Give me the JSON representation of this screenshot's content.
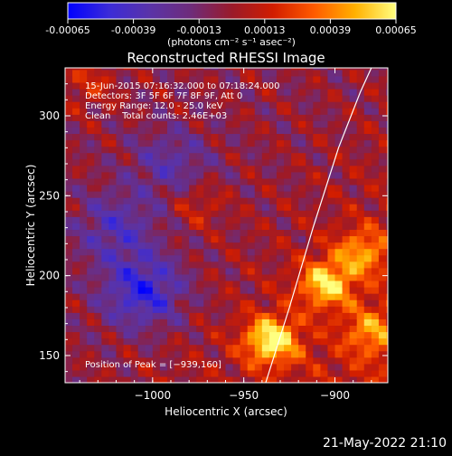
{
  "colorbar": {
    "ticks": [
      "-0.00065",
      "-0.00039",
      "-0.00013",
      "0.00013",
      "0.00039",
      "0.00065"
    ],
    "unit_label": "(photons cm⁻² s⁻¹ asec⁻²)",
    "range": [
      -0.00065,
      0.00065
    ],
    "colors": [
      "#0000ff",
      "#3b2bd8",
      "#5a33a8",
      "#6e2c7a",
      "#9a1a2a",
      "#d11d00",
      "#ff5a00",
      "#ffb000",
      "#ffff80"
    ]
  },
  "chart_data": {
    "type": "heatmap",
    "title": "Reconstructed RHESSI Image",
    "xlabel": "Heliocentric X (arcsec)",
    "ylabel": "Heliocentric Y (arcsec)",
    "xlim": [
      -1048,
      -871
    ],
    "ylim": [
      133,
      330
    ],
    "x_ticks": [
      -1000,
      -950,
      -900
    ],
    "y_ticks": [
      150,
      200,
      250,
      300
    ],
    "x_tick_labels": [
      "−1000",
      "−950",
      "−900"
    ],
    "y_tick_labels": [
      "150",
      "200",
      "250",
      "300"
    ],
    "annotations": [
      "15-Jun-2015 07:16:32.000 to 07:18:24.000",
      "Detectors: 3F 5F 6F 7F 8F 9F, Att 0",
      "Energy Range: 12.0 - 25.0 keV",
      "Clean    Total counts: 2.46E+03"
    ],
    "peak_label": "Position of Peak = [−939,160]",
    "peak_position": [
      -939,
      160
    ],
    "limb_curve": {
      "x": [
        -938,
        -925,
        -912,
        -898,
        -886,
        -880
      ],
      "y": [
        133,
        180,
        230,
        280,
        315,
        330
      ]
    },
    "bright_regions": [
      {
        "x": -935,
        "y": 160,
        "value": 0.00065
      },
      {
        "x": -905,
        "y": 195,
        "value": 0.00055
      },
      {
        "x": -885,
        "y": 215,
        "value": 0.0004
      },
      {
        "x": -880,
        "y": 165,
        "value": 0.00035
      },
      {
        "x": -1035,
        "y": 320,
        "value": 0.0002
      },
      {
        "x": -975,
        "y": 245,
        "value": 0.0002
      }
    ],
    "dark_regions": [
      {
        "x": -1005,
        "y": 190,
        "value": -0.00045
      },
      {
        "x": -1020,
        "y": 230,
        "value": -0.0003
      },
      {
        "x": -990,
        "y": 270,
        "value": -0.00025
      }
    ]
  },
  "footer": {
    "date": "21-May-2022 21:10"
  }
}
